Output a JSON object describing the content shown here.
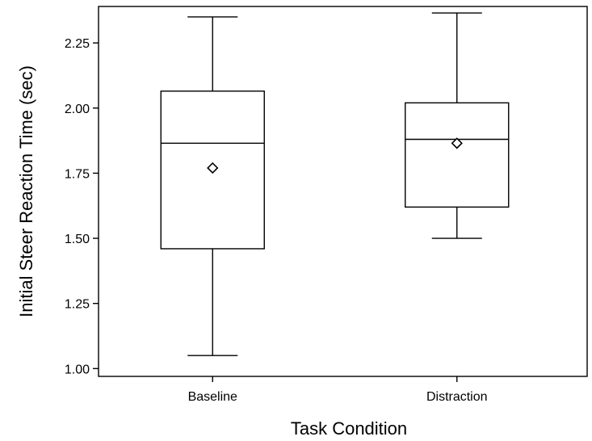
{
  "chart_data": {
    "type": "boxplot",
    "xlabel": "Task Condition",
    "ylabel": "Initial Steer Reaction Time (sec)",
    "ylim": [
      0.97,
      2.39
    ],
    "yticks": [
      1.0,
      1.25,
      1.5,
      1.75,
      2.0,
      2.25
    ],
    "ytick_labels": [
      "1.00",
      "1.25",
      "1.50",
      "1.75",
      "2.00",
      "2.25"
    ],
    "categories": [
      "Baseline",
      "Distraction"
    ],
    "boxes": [
      {
        "category": "Baseline",
        "whisker_low": 1.05,
        "q1": 1.46,
        "median": 1.865,
        "q3": 2.065,
        "whisker_high": 2.35,
        "mean": 1.77
      },
      {
        "category": "Distraction",
        "whisker_low": 1.5,
        "q1": 1.62,
        "median": 1.88,
        "q3": 2.02,
        "whisker_high": 2.365,
        "mean": 1.865
      }
    ],
    "mean_marker": "diamond",
    "grid": false,
    "legend": "none"
  }
}
